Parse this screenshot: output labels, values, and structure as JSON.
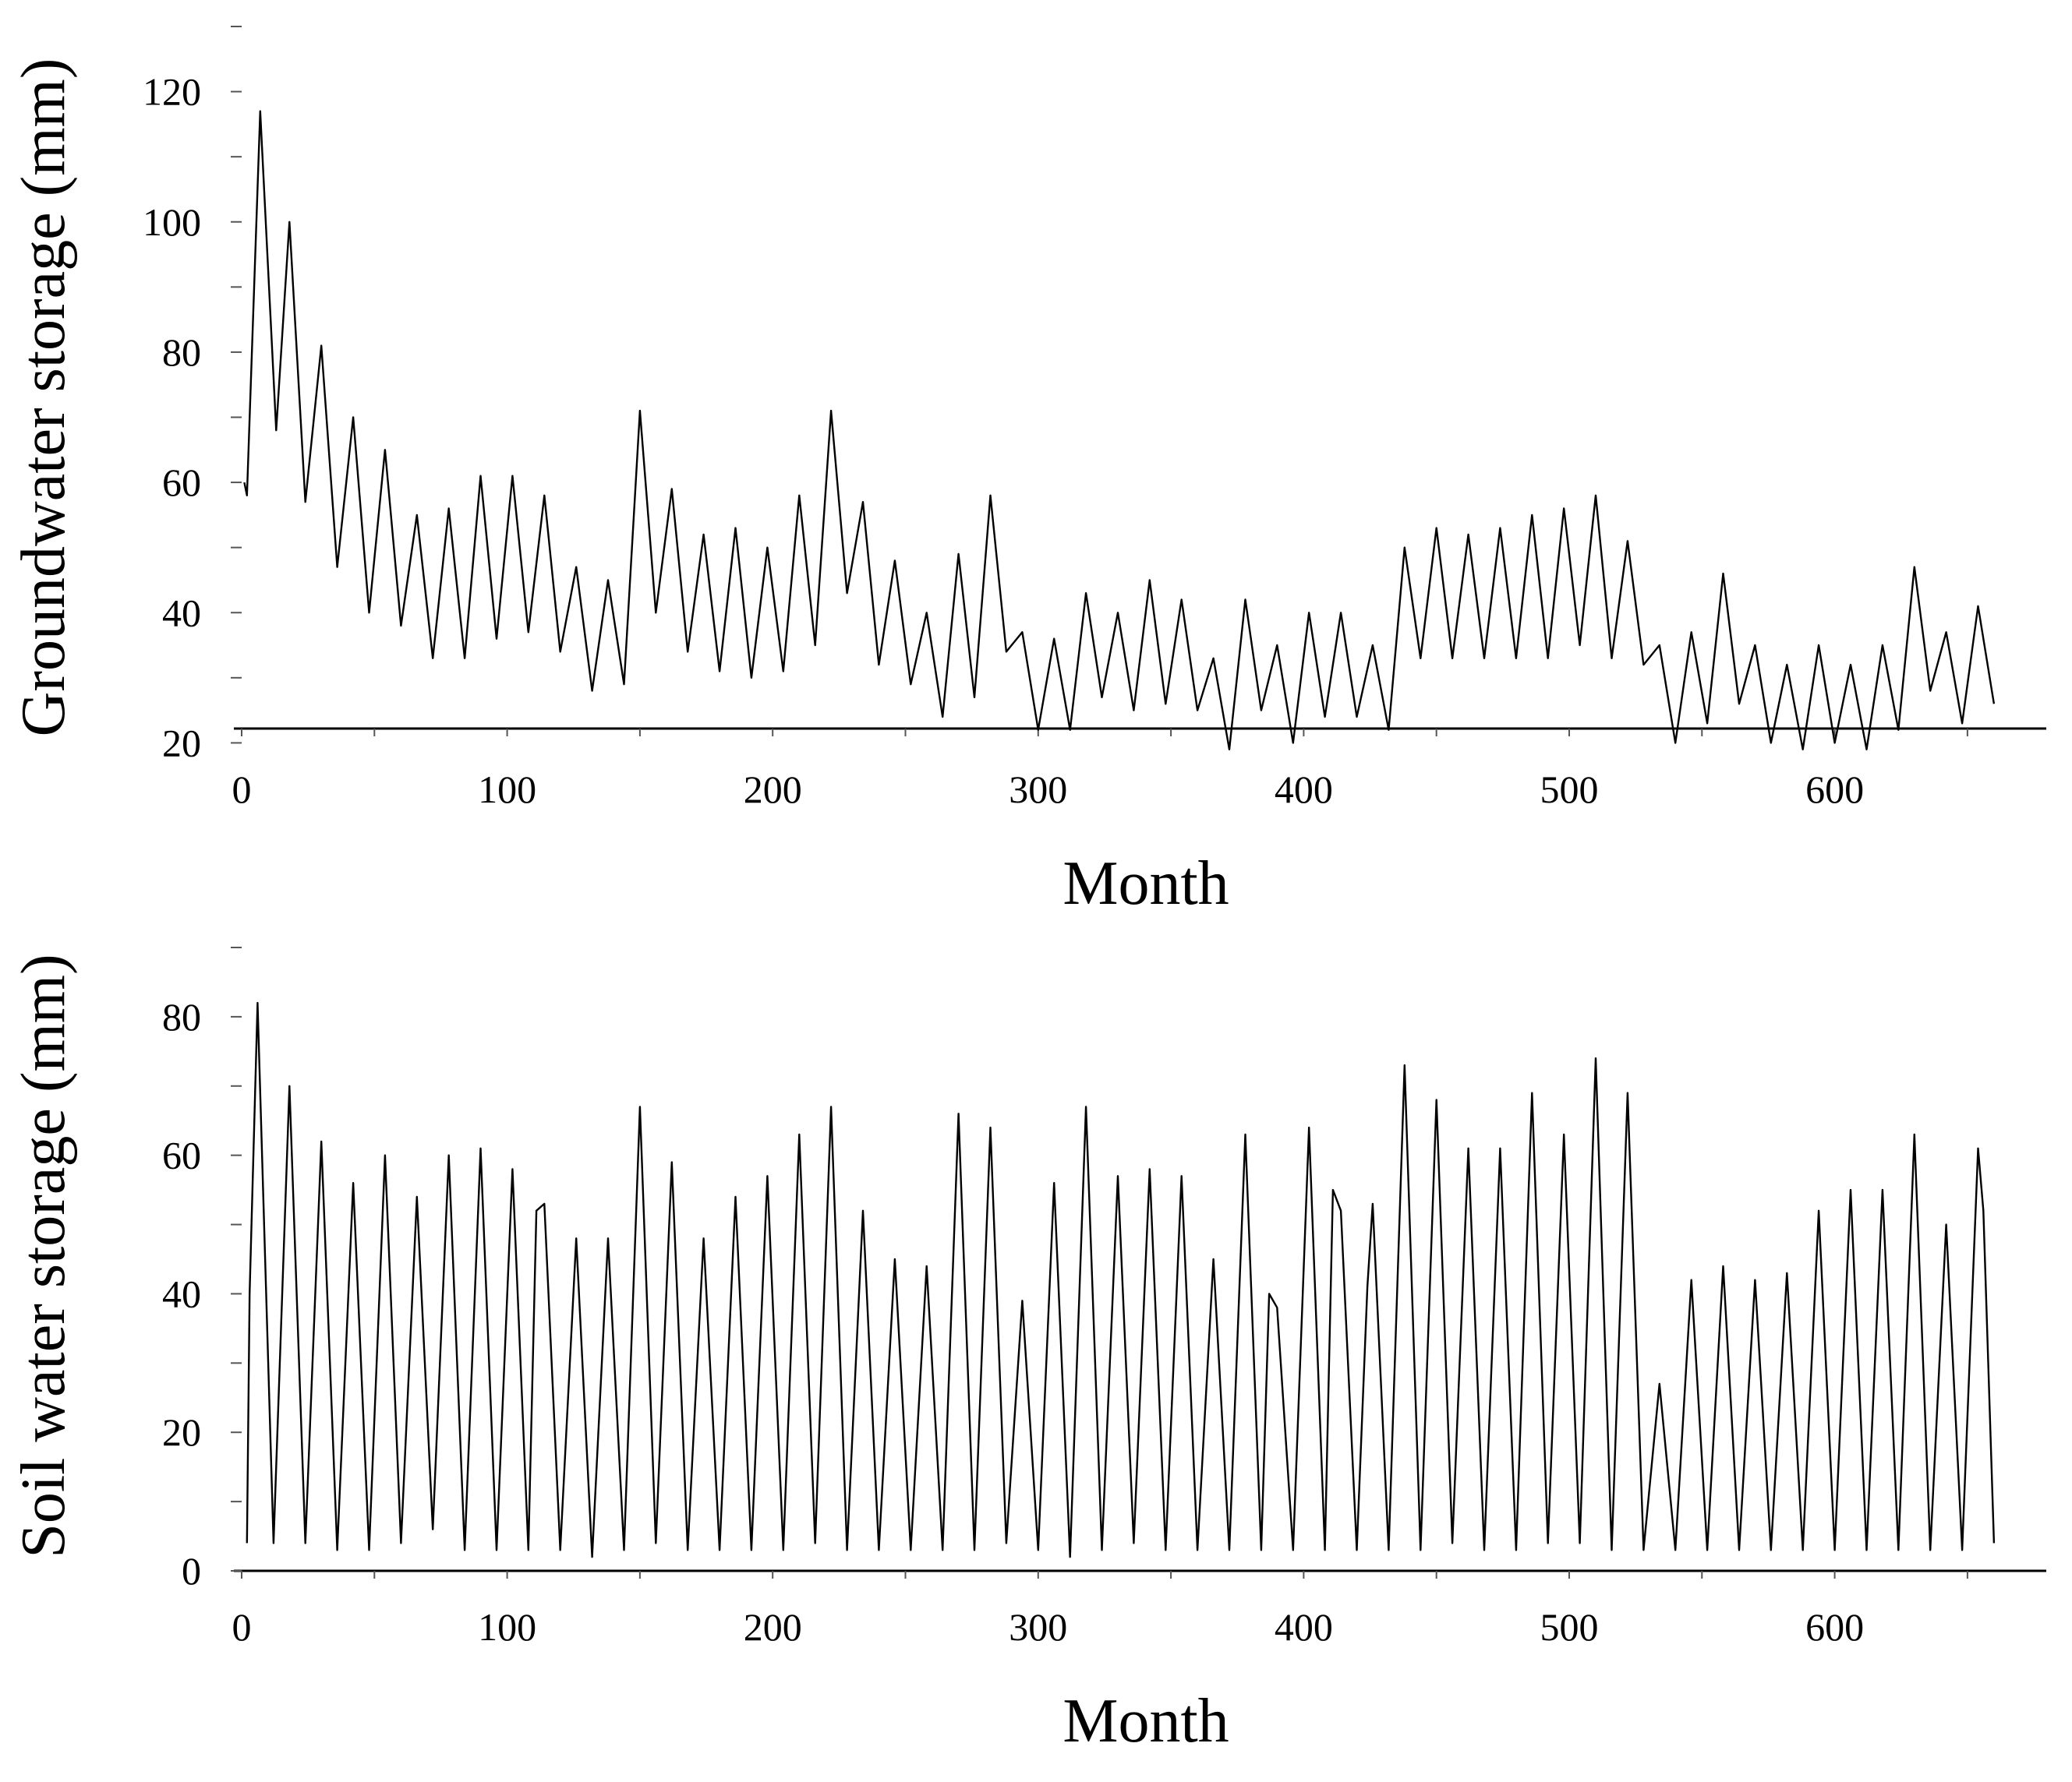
{
  "chart_data": [
    {
      "type": "line",
      "title": "",
      "xlabel": "Month",
      "ylabel": "Groundwater storage (mm)",
      "xlim": [
        0,
        670
      ],
      "ylim": [
        10,
        130
      ],
      "xticks": [
        "0",
        "100",
        "200",
        "300",
        "400",
        "500",
        "600"
      ],
      "yticks": [
        "20",
        "40",
        "60",
        "80",
        "100",
        "120"
      ],
      "grid": false,
      "legend": "none",
      "line_color": "#000000",
      "series": [
        {
          "x": [
            1,
            2,
            7,
            13,
            18,
            24,
            30,
            36,
            42,
            48,
            54,
            60,
            66,
            72,
            78,
            84,
            90,
            96,
            102,
            108,
            114,
            120,
            126,
            132,
            138,
            144,
            150,
            156,
            162,
            168,
            174,
            180,
            186,
            192,
            198,
            204,
            210,
            216,
            222,
            228,
            234,
            240,
            246,
            252,
            258,
            264,
            270,
            276,
            282,
            288,
            294,
            300,
            306,
            312,
            318,
            324,
            330,
            336,
            342,
            348,
            354,
            360,
            366,
            372,
            378,
            384,
            390,
            396,
            402,
            408,
            414,
            420,
            426,
            432,
            438,
            444,
            450,
            456,
            462,
            468,
            474,
            480,
            486,
            492,
            498,
            504,
            510,
            516,
            522,
            528,
            534,
            540,
            546,
            552,
            558,
            564,
            570,
            576,
            582,
            588,
            594,
            600,
            606,
            612,
            618,
            624,
            630,
            636,
            642,
            648,
            654,
            660
          ],
          "y": [
            60,
            58,
            117,
            68,
            100,
            57,
            81,
            47,
            70,
            40,
            65,
            38,
            55,
            33,
            56,
            33,
            61,
            36,
            61,
            37,
            58,
            34,
            47,
            28,
            45,
            29,
            71,
            40,
            59,
            34,
            52,
            31,
            53,
            30,
            50,
            31,
            58,
            35,
            71,
            43,
            57,
            32,
            48,
            29,
            40,
            24,
            49,
            27,
            58,
            34,
            37,
            22,
            36,
            22,
            43,
            27,
            40,
            25,
            45,
            26,
            42,
            25,
            33,
            19,
            42,
            25,
            35,
            20,
            40,
            24,
            40,
            24,
            35,
            22,
            50,
            33,
            53,
            33,
            52,
            33,
            53,
            33,
            55,
            33,
            56,
            35,
            58,
            33,
            51,
            32,
            35,
            20,
            37,
            23,
            46,
            26,
            35,
            20,
            32,
            19,
            35,
            20,
            32,
            19,
            35,
            22,
            47,
            28,
            37,
            23,
            41,
            26
          ]
        }
      ]
    },
    {
      "type": "line",
      "title": "",
      "xlabel": "Month",
      "ylabel": "Soil water storage (mm)",
      "xlim": [
        0,
        670
      ],
      "ylim": [
        0,
        90
      ],
      "xticks": [
        "0",
        "100",
        "200",
        "300",
        "400",
        "500",
        "600"
      ],
      "yticks": [
        "0",
        "20",
        "40",
        "60",
        "80"
      ],
      "grid": false,
      "legend": "none",
      "line_color": "#000000",
      "series": [
        {
          "x": [
            2,
            3,
            6,
            12,
            18,
            24,
            30,
            36,
            42,
            48,
            54,
            60,
            66,
            72,
            78,
            84,
            90,
            96,
            102,
            108,
            111,
            114,
            120,
            126,
            132,
            138,
            144,
            150,
            156,
            162,
            168,
            174,
            180,
            186,
            192,
            198,
            204,
            210,
            216,
            222,
            228,
            234,
            240,
            246,
            252,
            258,
            264,
            270,
            276,
            282,
            288,
            294,
            300,
            306,
            312,
            318,
            324,
            330,
            336,
            342,
            348,
            354,
            360,
            366,
            372,
            378,
            384,
            387,
            390,
            396,
            402,
            408,
            411,
            414,
            420,
            424,
            426,
            432,
            438,
            444,
            450,
            456,
            462,
            468,
            474,
            480,
            486,
            492,
            498,
            504,
            510,
            516,
            522,
            528,
            534,
            540,
            546,
            552,
            558,
            564,
            570,
            576,
            582,
            588,
            594,
            600,
            606,
            612,
            618,
            624,
            630,
            636,
            642,
            648,
            654,
            656,
            660
          ],
          "y": [
            4,
            40,
            82,
            4,
            70,
            4,
            62,
            3,
            56,
            3,
            60,
            4,
            54,
            6,
            60,
            3,
            61,
            3,
            58,
            3,
            52,
            53,
            3,
            48,
            2,
            48,
            3,
            67,
            4,
            59,
            3,
            48,
            3,
            54,
            3,
            57,
            3,
            63,
            4,
            67,
            3,
            52,
            3,
            45,
            3,
            44,
            3,
            66,
            3,
            64,
            4,
            39,
            3,
            56,
            2,
            67,
            3,
            57,
            4,
            58,
            3,
            57,
            3,
            45,
            3,
            63,
            3,
            40,
            38,
            3,
            64,
            3,
            55,
            52,
            3,
            41,
            53,
            3,
            73,
            3,
            68,
            4,
            61,
            3,
            61,
            3,
            69,
            4,
            63,
            4,
            74,
            3,
            69,
            3,
            27,
            3,
            42,
            3,
            44,
            3,
            42,
            3,
            43,
            3,
            52,
            3,
            55,
            3,
            55,
            3,
            63,
            3,
            50,
            3,
            61,
            52,
            4
          ]
        }
      ]
    }
  ]
}
